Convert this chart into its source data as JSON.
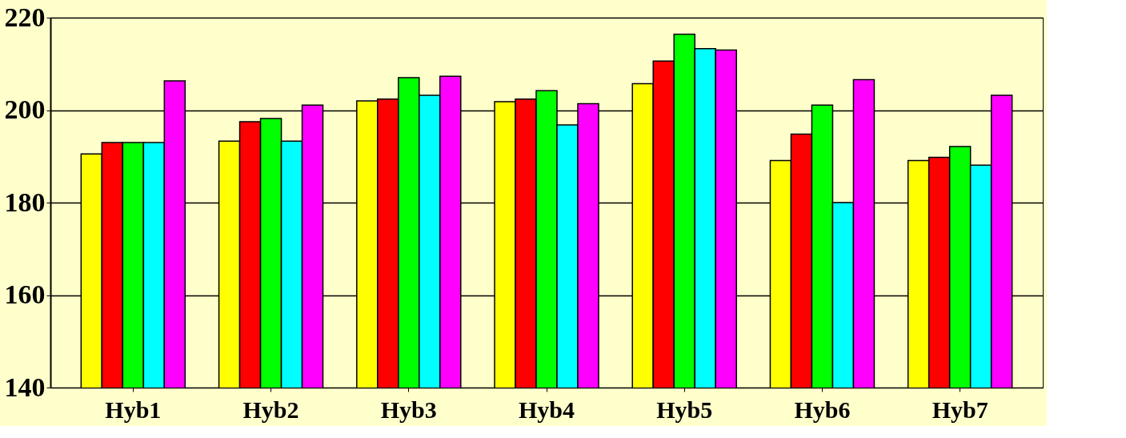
{
  "chart_data": {
    "type": "bar",
    "categories": [
      "Hyb1",
      "Hyb2",
      "Hyb3",
      "Hyb4",
      "Hyb5",
      "Hyb6",
      "Hyb7"
    ],
    "series": [
      {
        "color": "#ffff00",
        "values": [
          190.5,
          193.3,
          202,
          201.8,
          205.7,
          189.1,
          189.1
        ]
      },
      {
        "color": "#ff0000",
        "values": [
          193,
          197.5,
          202.4,
          202.4,
          210.6,
          194.8,
          189.8
        ]
      },
      {
        "color": "#00ff00",
        "values": [
          193,
          198.2,
          207,
          204.2,
          216.4,
          201.1,
          192.1
        ]
      },
      {
        "color": "#00ffff",
        "values": [
          193,
          193.3,
          203.2,
          196.8,
          213.3,
          180,
          188.1
        ]
      },
      {
        "color": "#ff00ff",
        "values": [
          206.3,
          201.1,
          207.3,
          201.4,
          213,
          206.6,
          203.2
        ]
      }
    ],
    "ylim": [
      140,
      220
    ],
    "yticks": [
      140,
      160,
      180,
      200,
      220
    ],
    "grid": "y",
    "legend": false
  }
}
